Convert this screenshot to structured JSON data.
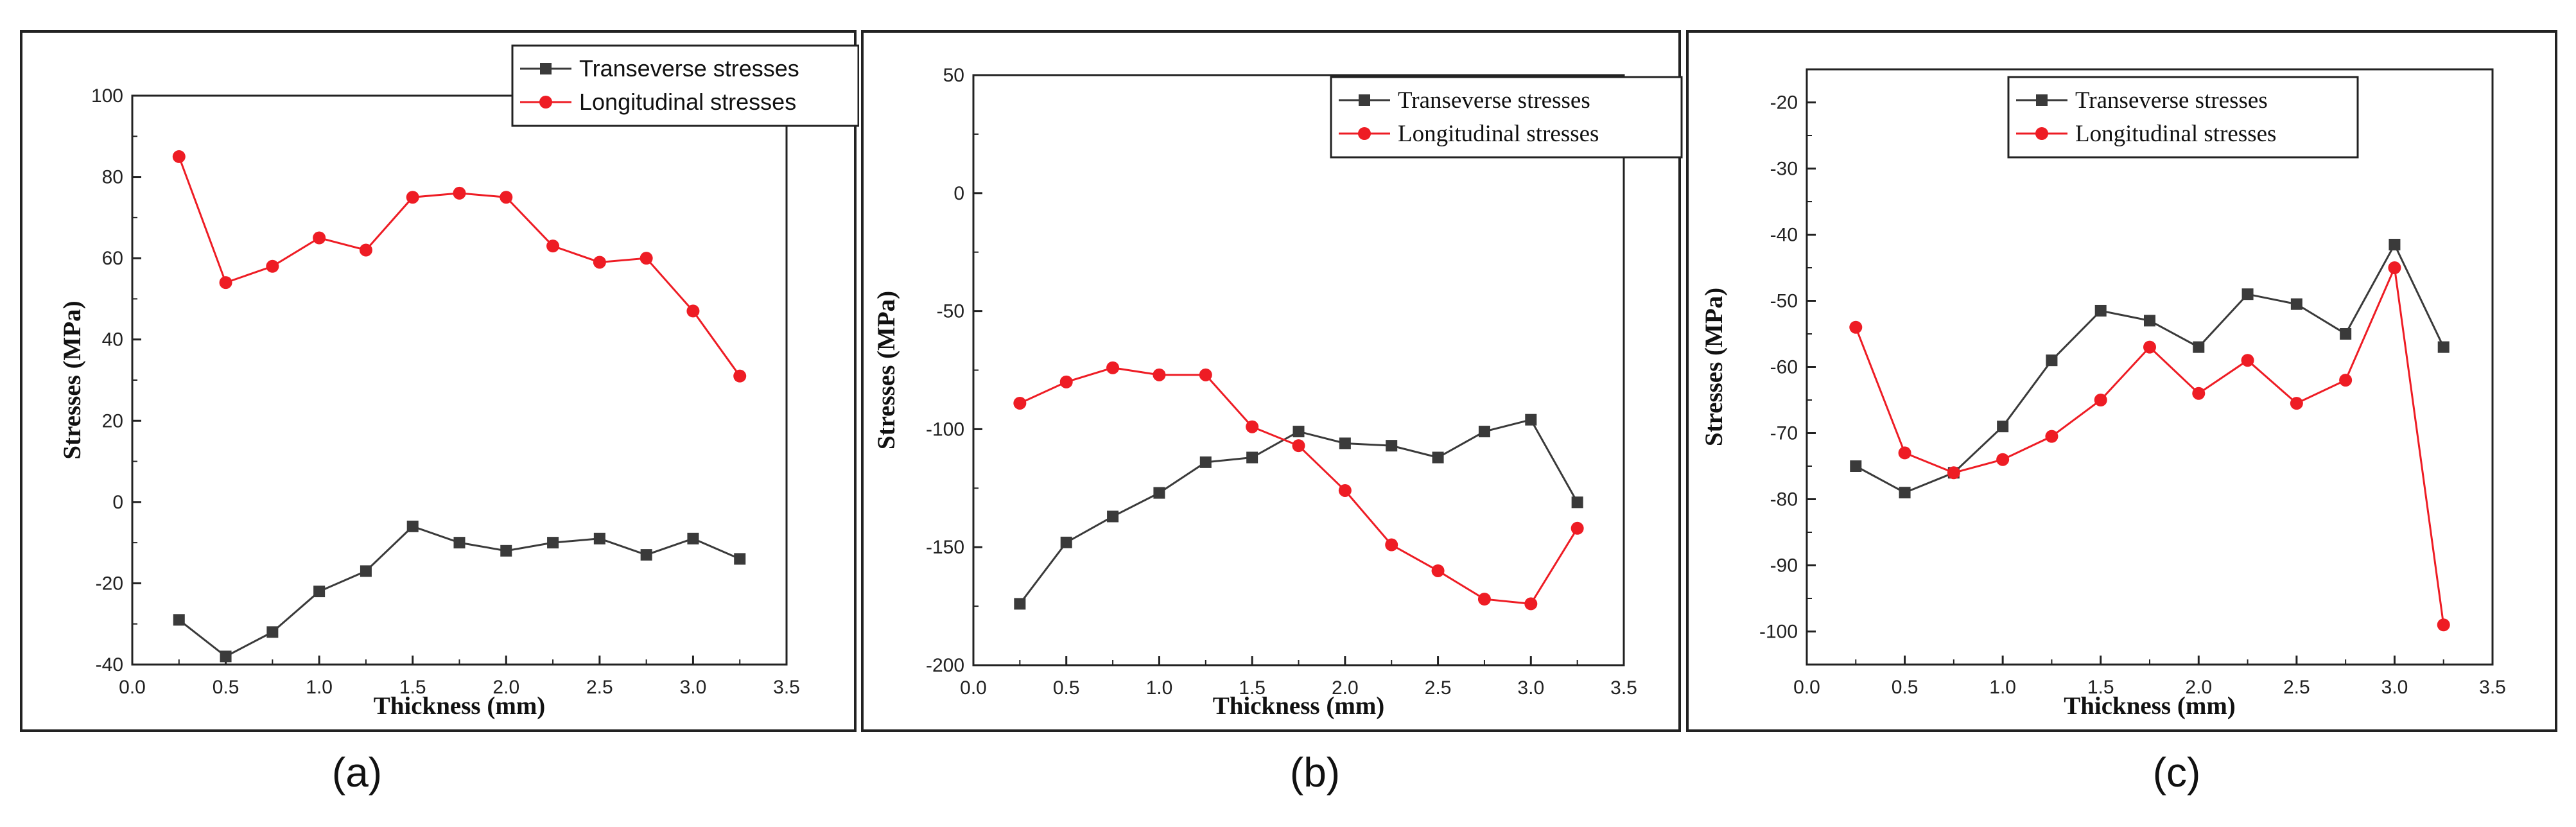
{
  "chart_data": [
    {
      "type": "line",
      "panel_label": "(a)",
      "xlabel": "Thickness (mm)",
      "ylabel": "Stresses (MPa)",
      "xlim": [
        0.0,
        3.5
      ],
      "ylim": [
        -40,
        100
      ],
      "xticks": [
        "0.0",
        "0.5",
        "1.0",
        "1.5",
        "2.0",
        "2.5",
        "3.0",
        "3.5"
      ],
      "yticks": [
        "-40",
        "-20",
        "0",
        "20",
        "40",
        "60",
        "80",
        "100"
      ],
      "legend_position": "top-right",
      "x": [
        0.25,
        0.5,
        0.75,
        1.0,
        1.25,
        1.5,
        1.75,
        2.0,
        2.25,
        2.5,
        2.75,
        3.0,
        3.25
      ],
      "series": [
        {
          "name": "Transeverse stresses",
          "color": "#3a3a3a",
          "marker": "square",
          "values": [
            -29,
            -38,
            -32,
            -22,
            -17,
            -6,
            -10,
            -12,
            -10,
            -9,
            -13,
            -9,
            -14
          ]
        },
        {
          "name": "Longitudinal stresses",
          "color": "#ee1c24",
          "marker": "circle",
          "values": [
            85,
            54,
            58,
            65,
            62,
            75,
            76,
            75,
            63,
            59,
            60,
            47,
            31
          ]
        }
      ]
    },
    {
      "type": "line",
      "panel_label": "(b)",
      "xlabel": "Thickness (mm)",
      "ylabel": "Stresses (MPa)",
      "xlim": [
        0.0,
        3.5
      ],
      "ylim": [
        -200,
        50
      ],
      "xticks": [
        "0.0",
        "0.5",
        "1.0",
        "1.5",
        "2.0",
        "2.5",
        "3.0",
        "3.5"
      ],
      "yticks": [
        "-200",
        "-150",
        "-100",
        "-50",
        "0",
        "50"
      ],
      "legend_position": "top-right",
      "x": [
        0.25,
        0.5,
        0.75,
        1.0,
        1.25,
        1.5,
        1.75,
        2.0,
        2.25,
        2.5,
        2.75,
        3.0,
        3.25
      ],
      "series": [
        {
          "name": "Transeverse stresses",
          "color": "#3a3a3a",
          "marker": "square",
          "values": [
            -174,
            -148,
            -137,
            -127,
            -114,
            -112,
            -101,
            -106,
            -107,
            -112,
            -101,
            -96,
            -131
          ]
        },
        {
          "name": "Longitudinal stresses",
          "color": "#ee1c24",
          "marker": "circle",
          "values": [
            -89,
            -80,
            -74,
            -77,
            -77,
            -99,
            -107,
            -126,
            -149,
            -160,
            -172,
            -174,
            -142
          ]
        }
      ]
    },
    {
      "type": "line",
      "panel_label": "(c)",
      "xlabel": "Thickness (mm)",
      "ylabel": "Stresses (MPa)",
      "xlim": [
        0.0,
        3.5
      ],
      "ylim": [
        -105,
        -15
      ],
      "xticks": [
        "0.0",
        "0.5",
        "1.0",
        "1.5",
        "2.0",
        "2.5",
        "3.0",
        "3.5"
      ],
      "yticks": [
        "-100",
        "-90",
        "-80",
        "-70",
        "-60",
        "-50",
        "-40",
        "-30",
        "-20"
      ],
      "legend_position": "top-right",
      "x": [
        0.25,
        0.5,
        0.75,
        1.0,
        1.25,
        1.5,
        1.75,
        2.0,
        2.25,
        2.5,
        2.75,
        3.0,
        3.25
      ],
      "series": [
        {
          "name": "Transeverse stresses",
          "color": "#3a3a3a",
          "marker": "square",
          "values": [
            -75,
            -79,
            -76,
            -69,
            -59,
            -51.5,
            -53,
            -57,
            -49,
            -50.5,
            -55,
            -41.5,
            -57
          ]
        },
        {
          "name": "Longitudinal stresses",
          "color": "#ee1c24",
          "marker": "circle",
          "values": [
            -54,
            -73,
            -76,
            -74,
            -70.5,
            -65,
            -57,
            -64,
            -59,
            -65.5,
            -62,
            -45,
            -99
          ]
        }
      ]
    }
  ]
}
